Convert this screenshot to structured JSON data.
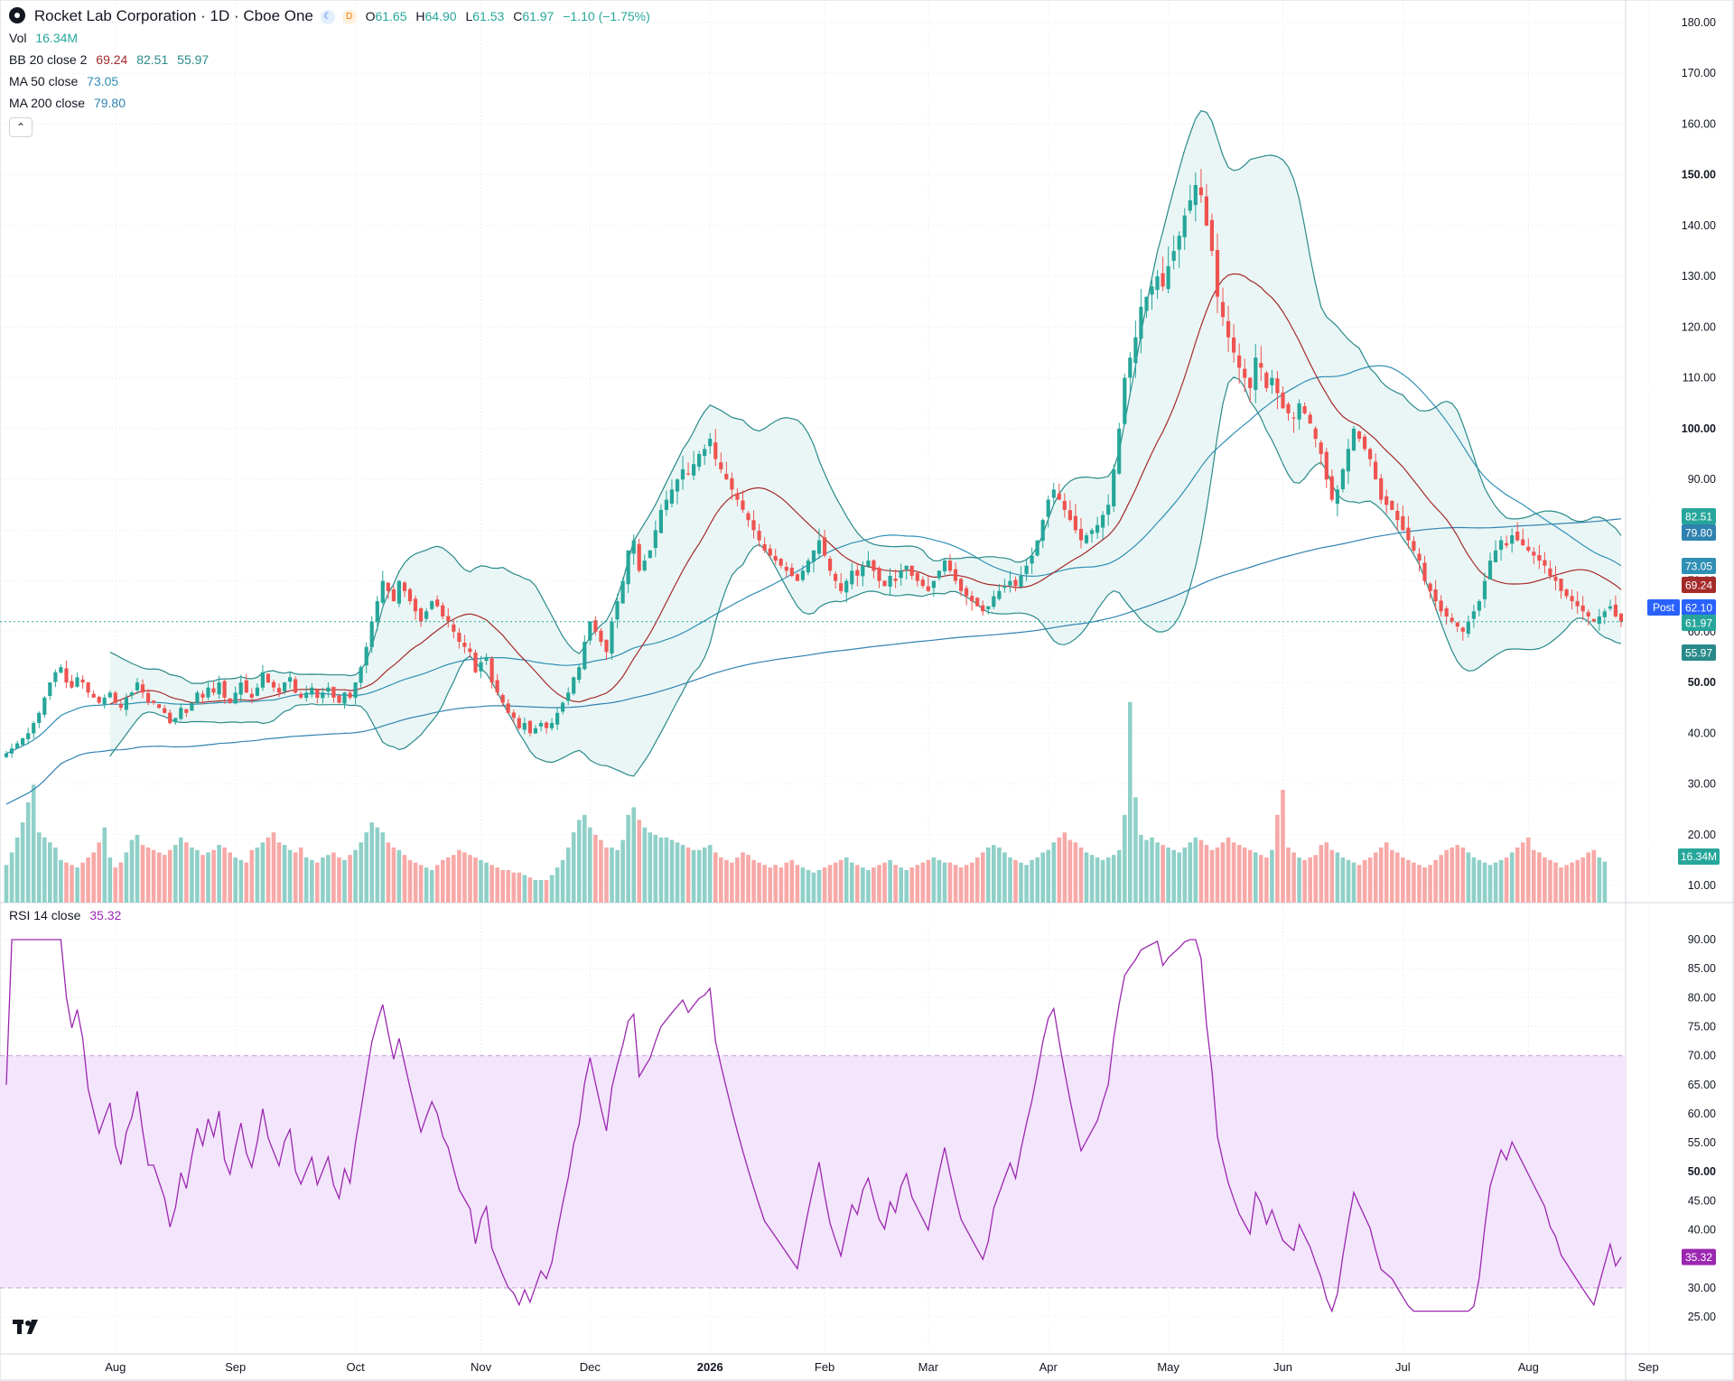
{
  "header": {
    "title": "Rocket Lab Corporation · 1D · Cboe One",
    "open_label": "O",
    "open": "61.65",
    "high_label": "H",
    "high": "64.90",
    "low_label": "L",
    "low": "61.53",
    "close_label": "C",
    "close": "61.97",
    "change": "−1.10 (−1.75%)"
  },
  "indicators": {
    "vol": {
      "label": "Vol",
      "value": "16.34M"
    },
    "bb": {
      "label": "BB 20 close 2",
      "basis": "69.24",
      "upper": "82.51",
      "lower": "55.97"
    },
    "ma50": {
      "label": "MA 50 close",
      "value": "73.05"
    },
    "ma200": {
      "label": "MA 200 close",
      "value": "79.80"
    },
    "rsi": {
      "label": "RSI 14 close",
      "value": "35.32"
    }
  },
  "badges": {
    "post": "Post"
  },
  "colors": {
    "up": "#26a69a",
    "down": "#ef5350",
    "vol_up": "#8fd0c8",
    "vol_down": "#f7a9a7",
    "bb_line": "#2a8a8a",
    "bb_fill": "#e8f5f4",
    "basis": "#a52a2a",
    "ma50": "#2f8fb5",
    "ma200": "#2f82b0",
    "rsi": "#9c27b0",
    "rsi_band": "#f3e5fc",
    "grid": "#e6e8ee",
    "text": "#131722"
  },
  "chart_data": {
    "type": "candlestick",
    "price_axis": {
      "ylim": [
        5,
        180
      ],
      "ticks": [
        10,
        20,
        30,
        40,
        50,
        60,
        70,
        80,
        90,
        100,
        110,
        120,
        130,
        140,
        150,
        160,
        170,
        180
      ],
      "labels": [
        "10.00",
        "20.00",
        "30.00",
        "40.00",
        "50.00",
        "60.00",
        "70.00",
        "80.00",
        "90.00",
        "100.00",
        "110.00",
        "120.00",
        "130.00",
        "140.00",
        "150.00",
        "160.00",
        "170.00",
        "180.00"
      ],
      "bold": [
        "50.00",
        "100.00",
        "150.00"
      ]
    },
    "rsi_axis": {
      "ylim": [
        22.5,
        92.5
      ],
      "ticks": [
        25,
        30,
        35,
        40,
        45,
        50,
        55,
        60,
        65,
        70,
        75,
        80,
        85,
        90
      ],
      "labels": [
        "25.00",
        "30.00",
        "35.00",
        "40.00",
        "45.00",
        "50.00",
        "55.00",
        "60.00",
        "65.00",
        "70.00",
        "75.00",
        "80.00",
        "85.00",
        "90.00"
      ],
      "bold": [
        "50.00"
      ],
      "band": [
        30,
        70
      ]
    },
    "volume_axis": {
      "max_millions": 90
    },
    "x_labels": [
      {
        "label": "Aug",
        "bar": 20
      },
      {
        "label": "Sep",
        "bar": 42
      },
      {
        "label": "Oct",
        "bar": 64
      },
      {
        "label": "Nov",
        "bar": 87
      },
      {
        "label": "Dec",
        "bar": 107
      },
      {
        "label": "2026",
        "bar": 129,
        "bold": true
      },
      {
        "label": "Feb",
        "bar": 150
      },
      {
        "label": "Mar",
        "bar": 169
      },
      {
        "label": "Apr",
        "bar": 191
      },
      {
        "label": "May",
        "bar": 213
      },
      {
        "label": "Jun",
        "bar": 234
      },
      {
        "label": "Jul",
        "bar": 256
      },
      {
        "label": "Aug",
        "bar": 279
      },
      {
        "label": "Sep",
        "bar": 301
      }
    ],
    "closes": [
      36,
      37,
      38,
      39,
      40,
      42,
      44,
      47,
      50,
      52,
      53,
      50,
      49,
      51,
      50,
      48,
      47,
      46,
      47,
      48,
      46,
      45,
      47,
      48,
      50,
      48,
      46,
      46,
      45,
      44,
      42,
      43,
      45,
      44,
      46,
      48,
      47,
      49,
      48,
      50,
      47,
      46,
      48,
      50,
      48,
      47,
      49,
      52,
      50,
      49,
      48,
      50,
      51,
      48,
      47,
      48,
      49,
      47,
      48,
      49,
      47,
      46,
      48,
      47,
      50,
      53,
      57,
      62,
      66,
      70,
      68,
      66,
      70,
      68,
      66,
      64,
      62,
      64,
      66,
      65,
      63,
      62,
      60,
      58,
      57,
      56,
      52,
      54,
      55,
      50,
      48,
      46,
      44,
      43,
      41,
      42,
      40,
      41,
      42,
      41,
      42,
      44,
      46,
      48,
      51,
      53,
      58,
      62,
      60,
      58,
      56,
      62,
      66,
      70,
      76,
      78,
      72,
      74,
      76,
      80,
      84,
      86,
      88,
      90,
      92,
      91,
      93,
      95,
      96,
      98,
      94,
      92,
      90,
      88,
      86,
      84,
      82,
      80,
      78,
      76,
      75,
      74,
      73,
      72,
      71,
      70,
      72,
      74,
      76,
      78,
      75,
      72,
      70,
      68,
      70,
      72,
      71,
      73,
      74,
      72,
      70,
      69,
      71,
      70,
      72,
      73,
      71,
      70,
      69,
      68,
      70,
      72,
      74,
      72,
      70,
      68,
      67,
      66,
      65,
      64,
      65,
      67,
      68,
      69,
      70,
      69,
      71,
      73,
      75,
      78,
      82,
      86,
      88,
      86,
      84,
      82,
      80,
      78,
      79,
      80,
      81,
      83,
      85,
      92,
      100,
      110,
      114,
      118,
      124,
      126,
      128,
      130,
      128,
      132,
      135,
      138,
      142,
      145,
      148,
      146,
      140,
      135,
      126,
      122,
      118,
      115,
      112,
      110,
      108,
      114,
      112,
      108,
      110,
      107,
      104,
      103,
      102,
      105,
      103,
      101,
      98,
      95,
      90,
      86,
      88,
      92,
      96,
      100,
      98,
      96,
      94,
      90,
      86,
      85,
      84,
      82,
      80,
      78,
      76,
      74,
      70,
      68,
      66,
      64,
      63,
      62,
      61,
      60,
      62,
      64,
      66,
      70,
      74,
      76,
      78,
      77,
      79,
      78,
      77,
      76,
      75,
      74,
      73,
      71,
      70,
      68,
      67,
      66,
      65,
      64,
      63,
      62,
      63,
      64,
      65,
      63,
      61.97
    ],
    "volume_millions": [
      15,
      20,
      26,
      32,
      40,
      47,
      28,
      26,
      24,
      22,
      17,
      16,
      15,
      14,
      16,
      18,
      20,
      24,
      30,
      18,
      14,
      16,
      20,
      25,
      27,
      23,
      22,
      21,
      20,
      19,
      21,
      23,
      26,
      24,
      22,
      21,
      19,
      20,
      21,
      23,
      22,
      20,
      18,
      17,
      16,
      21,
      22,
      24,
      26,
      28,
      24,
      23,
      21,
      20,
      22,
      18,
      17,
      16,
      18,
      19,
      20,
      18,
      17,
      19,
      21,
      24,
      28,
      32,
      30,
      28,
      24,
      22,
      21,
      19,
      17,
      16,
      15,
      14,
      13,
      15,
      17,
      18,
      19,
      21,
      20,
      19,
      18,
      17,
      16,
      15,
      14,
      13,
      13,
      12,
      12,
      11,
      10,
      9,
      9,
      9,
      11,
      14,
      17,
      22,
      28,
      33,
      35,
      30,
      27,
      25,
      22,
      22,
      21,
      25,
      35,
      38,
      33,
      30,
      28,
      27,
      26,
      26,
      25,
      24,
      23,
      22,
      21,
      21,
      22,
      23,
      20,
      18,
      17,
      16,
      18,
      20,
      19,
      17,
      16,
      15,
      14,
      15,
      14,
      16,
      17,
      15,
      14,
      13,
      12,
      13,
      14,
      15,
      16,
      17,
      18,
      16,
      15,
      14,
      13,
      14,
      15,
      16,
      17,
      15,
      14,
      13,
      14,
      15,
      16,
      17,
      18,
      17,
      16,
      16,
      15,
      14,
      15,
      16,
      18,
      20,
      22,
      23,
      22,
      20,
      18,
      17,
      16,
      15,
      17,
      18,
      20,
      21,
      24,
      26,
      28,
      25,
      24,
      22,
      20,
      19,
      18,
      17,
      18,
      19,
      21,
      35,
      80,
      42,
      27,
      25,
      26,
      24,
      23,
      22,
      21,
      20,
      22,
      24,
      26,
      25,
      23,
      21,
      22,
      24,
      26,
      24,
      23,
      22,
      21,
      20,
      19,
      18,
      21,
      35,
      45,
      22,
      20,
      18,
      17,
      18,
      19,
      23,
      24,
      21,
      20,
      18,
      17,
      16,
      15,
      17,
      18,
      20,
      22,
      24,
      21,
      20,
      18,
      17,
      16,
      15,
      14,
      15,
      17,
      19,
      21,
      22,
      23,
      22,
      20,
      18,
      17,
      16,
      15,
      16,
      17,
      18,
      20,
      22,
      24,
      26,
      21,
      20,
      18,
      17,
      16,
      14,
      15,
      16,
      17,
      18,
      20,
      21,
      18,
      16.34
    ],
    "series": [
      {
        "name": "BB 20 close 2",
        "last": 69.24
      },
      {
        "name": "MA 50 close",
        "last": 73.05
      },
      {
        "name": "MA 200 close",
        "last": 79.8
      },
      {
        "name": "RSI 14 close",
        "last": 35.32
      }
    ],
    "price_badges": [
      {
        "value": 82.51,
        "label": "82.51",
        "kind": "bb_upper"
      },
      {
        "value": 79.8,
        "label": "79.80",
        "kind": "ma200"
      },
      {
        "value": 73.05,
        "label": "73.05",
        "kind": "ma50"
      },
      {
        "value": 69.24,
        "label": "69.24",
        "kind": "basis"
      },
      {
        "value": 62.1,
        "label": "62.10",
        "kind": "post"
      },
      {
        "value": 61.97,
        "label": "61.97",
        "kind": "last"
      },
      {
        "value": 55.97,
        "label": "55.97",
        "kind": "bb_lower"
      }
    ],
    "volume_badge": "16.34M",
    "rsi_badge": "35.32"
  }
}
